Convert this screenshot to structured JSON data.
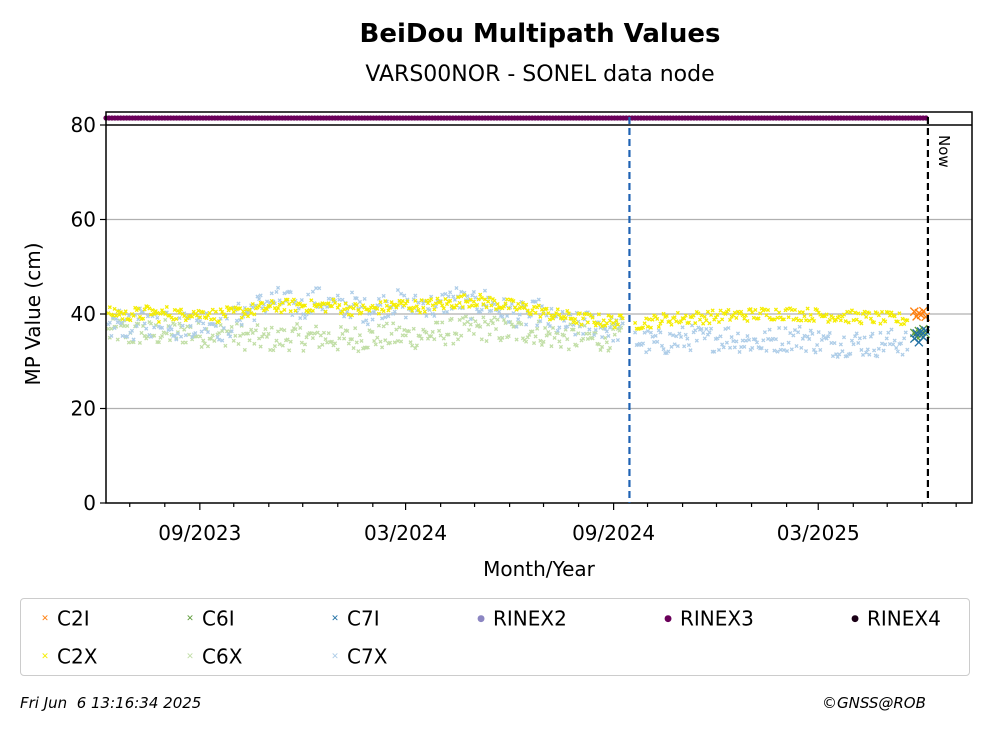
{
  "chart_data": {
    "type": "scatter",
    "title": "BeiDou Multipath Values",
    "subtitle": "VARS00NOR - SONEL data node",
    "xlabel": "Month/Year",
    "ylabel": "MP Value (cm)",
    "x_tick_labels": [
      "09/2023",
      "03/2024",
      "09/2024",
      "03/2025"
    ],
    "y_ticks": [
      0,
      20,
      40,
      60,
      80
    ],
    "ylim": [
      0,
      80
    ],
    "xlim": [
      "2023-06-10",
      "2025-07-15"
    ],
    "grid": "horizontal",
    "now_label": "Now",
    "now_date": "2025-06-06",
    "receiver_change_date": "2024-09-15",
    "series": [
      {
        "name": "C2I",
        "color": "#ff7f0e",
        "marker": "x",
        "points": [
          [
            "2025-05-25",
            40.5
          ],
          [
            "2025-05-27",
            39.5
          ],
          [
            "2025-05-29",
            40.2
          ],
          [
            "2025-05-31",
            39.8
          ],
          [
            "2025-06-02",
            40.6
          ],
          [
            "2025-06-04",
            39.4
          ]
        ]
      },
      {
        "name": "C6I",
        "color": "#5e9c3a",
        "marker": "x",
        "points": [
          [
            "2025-05-25",
            36.0
          ],
          [
            "2025-05-27",
            35.2
          ],
          [
            "2025-05-29",
            36.4
          ],
          [
            "2025-05-31",
            35.5
          ],
          [
            "2025-06-02",
            36.8
          ],
          [
            "2025-06-04",
            35.8
          ]
        ]
      },
      {
        "name": "C7I",
        "color": "#1f6fa3",
        "marker": "x",
        "points": [
          [
            "2025-05-25",
            34.8
          ],
          [
            "2025-05-27",
            35.9
          ],
          [
            "2025-05-29",
            34.0
          ],
          [
            "2025-05-31",
            36.3
          ],
          [
            "2025-06-02",
            35.1
          ],
          [
            "2025-06-04",
            36.5
          ]
        ]
      },
      {
        "name": "C2X",
        "color": "#f5ed00",
        "marker": "x",
        "segments": [
          {
            "start": "2023-06-12",
            "end": "2023-09-30",
            "values": [
              40.0,
              40.5,
              39.5,
              40.2,
              39.8,
              40.8,
              39.6,
              40.3,
              40.1,
              39.7,
              40.6,
              39.9,
              40.4,
              39.5,
              40.2,
              39.8
            ]
          },
          {
            "start": "2023-10-01",
            "end": "2023-12-31",
            "values": [
              40.2,
              40.6,
              41.0,
              41.4,
              41.6,
              41.8,
              41.9,
              41.5,
              41.7,
              42.0
            ]
          },
          {
            "start": "2024-01-01",
            "end": "2024-03-31",
            "values": [
              41.5,
              41.2,
              40.8,
              41.0,
              41.4,
              41.8,
              42.0,
              41.6,
              41.9,
              42.2
            ]
          },
          {
            "start": "2024-04-01",
            "end": "2024-06-30",
            "values": [
              42.0,
              42.4,
              42.8,
              43.0,
              42.6,
              42.2,
              41.8,
              41.4,
              41.0,
              40.6
            ]
          },
          {
            "start": "2024-07-01",
            "end": "2024-09-10",
            "values": [
              40.2,
              39.8,
              39.4,
              39.0,
              38.8,
              38.6,
              38.5,
              38.4
            ]
          },
          {
            "start": "2024-09-20",
            "end": "2025-05-20",
            "values": [
              38.0,
              38.5,
              39.0,
              39.2,
              39.4,
              39.6,
              39.8,
              40.0,
              40.2,
              40.0,
              39.8,
              39.6,
              39.4,
              39.2,
              39.0,
              38.8
            ]
          }
        ]
      },
      {
        "name": "C6X",
        "color": "#c1dea6",
        "marker": "x",
        "segments": [
          {
            "start": "2023-06-12",
            "end": "2023-09-30",
            "values": [
              36.0,
              36.5,
              35.5,
              36.2,
              35.8,
              36.1,
              35.9,
              36.3,
              35.6,
              36.0,
              35.7,
              36.4
            ]
          },
          {
            "start": "2023-10-01",
            "end": "2023-12-31",
            "values": [
              35.5,
              35.0,
              34.8,
              34.6,
              35.2,
              34.9,
              35.1,
              34.7
            ]
          },
          {
            "start": "2024-01-01",
            "end": "2024-03-31",
            "values": [
              34.6,
              34.8,
              35.0,
              35.2,
              35.4,
              35.3,
              35.6,
              35.8
            ]
          },
          {
            "start": "2024-04-01",
            "end": "2024-06-30",
            "values": [
              36.0,
              36.4,
              36.8,
              37.0,
              36.6,
              36.2,
              36.5,
              36.0
            ]
          },
          {
            "start": "2024-07-01",
            "end": "2024-09-10",
            "values": [
              35.5,
              35.2,
              35.0,
              34.8,
              35.0,
              35.3
            ]
          }
        ]
      },
      {
        "name": "C7X",
        "color": "#aecde8",
        "marker": "x",
        "segments": [
          {
            "start": "2023-06-12",
            "end": "2023-09-30",
            "values": [
              37.0,
              38.5,
              36.5,
              39.0,
              37.5,
              40.0,
              36.8,
              38.2,
              37.4,
              39.2,
              36.6,
              38.0
            ]
          },
          {
            "start": "2023-10-01",
            "end": "2023-12-31",
            "values": [
              39.0,
              40.5,
              41.5,
              42.5,
              43.0,
              42.0,
              41.0,
              43.5,
              42.2,
              41.6
            ]
          },
          {
            "start": "2024-01-01",
            "end": "2024-03-31",
            "values": [
              41.5,
              42.0,
              40.5,
              41.8,
              42.6,
              41.2,
              42.4,
              40.8
            ]
          },
          {
            "start": "2024-04-01",
            "end": "2024-06-30",
            "values": [
              42.0,
              43.5,
              41.5,
              42.8,
              41.0,
              40.2,
              39.5,
              40.8
            ]
          },
          {
            "start": "2024-07-01",
            "end": "2024-09-10",
            "values": [
              39.0,
              38.0,
              37.5,
              38.2,
              37.0,
              36.5
            ]
          },
          {
            "start": "2024-09-20",
            "end": "2025-05-20",
            "values": [
              34.5,
              33.8,
              34.2,
              35.0,
              34.6,
              35.2,
              34.4,
              33.9,
              34.8,
              35.1,
              34.3,
              33.6,
              34.0,
              33.5,
              34.2,
              33.8
            ]
          }
        ]
      },
      {
        "name": "RINEX2",
        "color": "#8c86c2",
        "marker": "o",
        "points": []
      },
      {
        "name": "RINEX3",
        "color": "#6a005a",
        "marker": "o",
        "value": 82,
        "start": "2023-06-10",
        "end": "2025-06-06"
      },
      {
        "name": "RINEX4",
        "color": "#1b0016",
        "marker": "o",
        "points": []
      }
    ]
  },
  "footer": {
    "timestamp": "Fri Jun  6 13:16:34 2025",
    "copyright": "©GNSS@ROB"
  }
}
